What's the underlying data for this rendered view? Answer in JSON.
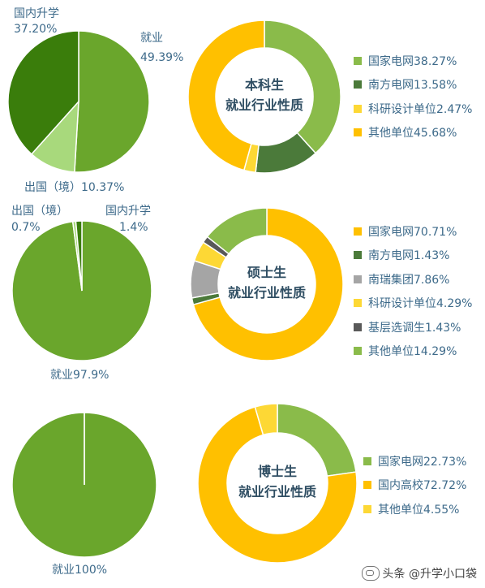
{
  "colors": {
    "green": "#6aa62c",
    "dark_green": "#3a7d0b",
    "light_green": "#a8d97c",
    "pale_green": "#8abb4a",
    "forest": "#4b7a3a",
    "orange": "#ffc000",
    "yellow": "#fdd835",
    "gray": "#a5a5a5",
    "dark_gray": "#595959"
  },
  "chart_data": [
    {
      "type": "pie",
      "group": "本科生",
      "slices": [
        {
          "label": "就业",
          "value": 49.39,
          "pct": "49.39%",
          "color": "#6aa62c"
        },
        {
          "label": "出国（境）",
          "value": 10.37,
          "pct": "10.37%",
          "color": "#a8d97c"
        },
        {
          "label": "国内升学",
          "value": 37.2,
          "pct": "37.20%",
          "color": "#3a7d0b"
        }
      ]
    },
    {
      "type": "pie",
      "subtype": "donut",
      "title": "本科生\n就业行业性质",
      "title_lines": [
        "本科生",
        "就业行业性质"
      ],
      "slices": [
        {
          "label": "国家电网",
          "value": 38.27,
          "pct": "38.27%",
          "color": "#8abb4a"
        },
        {
          "label": "南方电网",
          "value": 13.58,
          "pct": "13.58%",
          "color": "#4b7a3a"
        },
        {
          "label": "科研设计单位",
          "value": 2.47,
          "pct": "2.47%",
          "color": "#fdd835"
        },
        {
          "label": "其他单位",
          "value": 45.68,
          "pct": "45.68%",
          "color": "#ffc000"
        }
      ]
    },
    {
      "type": "pie",
      "group": "硕士生",
      "slices": [
        {
          "label": "就业",
          "value": 97.9,
          "pct": "97.9%",
          "color": "#6aa62c"
        },
        {
          "label": "出国（境）",
          "value": 0.7,
          "pct": "0.7%",
          "color": "#a8d97c"
        },
        {
          "label": "国内升学",
          "value": 1.4,
          "pct": "1.4%",
          "color": "#3a7d0b"
        }
      ]
    },
    {
      "type": "pie",
      "subtype": "donut",
      "title": "硕士生\n就业行业性质",
      "title_lines": [
        "硕士生",
        "就业行业性质"
      ],
      "slices": [
        {
          "label": "国家电网",
          "value": 70.71,
          "pct": "70.71%",
          "color": "#ffc000"
        },
        {
          "label": "南方电网",
          "value": 1.43,
          "pct": "1.43%",
          "color": "#4b7a3a"
        },
        {
          "label": "南瑞集团",
          "value": 7.86,
          "pct": "7.86%",
          "color": "#a5a5a5"
        },
        {
          "label": "科研设计单位",
          "value": 4.29,
          "pct": "4.29%",
          "color": "#fdd835"
        },
        {
          "label": "基层选调生",
          "value": 1.43,
          "pct": "1.43%",
          "color": "#595959"
        },
        {
          "label": "其他单位",
          "value": 14.29,
          "pct": "14.29%",
          "color": "#8abb4a"
        }
      ]
    },
    {
      "type": "pie",
      "group": "博士生",
      "slices": [
        {
          "label": "就业",
          "value": 100,
          "pct": "100%",
          "color": "#6aa62c"
        }
      ]
    },
    {
      "type": "pie",
      "subtype": "donut",
      "title": "博士生\n就业行业性质",
      "title_lines": [
        "博士生",
        "就业行业性质"
      ],
      "slices": [
        {
          "label": "国家电网",
          "value": 22.73,
          "pct": "22.73%",
          "color": "#8abb4a"
        },
        {
          "label": "国内高校",
          "value": 72.72,
          "pct": "72.72%",
          "color": "#ffc000"
        },
        {
          "label": "其他单位",
          "value": 4.55,
          "pct": "4.55%",
          "color": "#fdd835"
        }
      ]
    }
  ],
  "watermark": "头条 @升学小口袋"
}
